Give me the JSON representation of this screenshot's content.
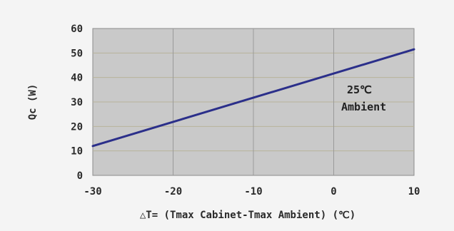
{
  "chart_data": {
    "type": "line",
    "xlabel": "△T= (Tmax Cabinet-Tmax Ambient) (℃)",
    "ylabel": "Qc (W)",
    "x_ticks": [
      "-30",
      "-20",
      "-10",
      "0",
      "10"
    ],
    "y_ticks": [
      "0",
      "10",
      "20",
      "30",
      "40",
      "50",
      "60"
    ],
    "xlim": [
      -30,
      10
    ],
    "ylim": [
      0,
      60
    ],
    "grid": true,
    "series": [
      {
        "x": [
          -30,
          10
        ],
        "y": [
          12,
          51.5
        ]
      }
    ],
    "annotation": {
      "line1": "25℃",
      "line2": "Ambient",
      "x": 2,
      "y": 30
    },
    "colors": {
      "plot_background": "#c9c9c9",
      "page_background": "#f4f4f4",
      "line": "#2b2f8a",
      "grid_horizontal": "#b7b39a",
      "grid_vertical": "#9a9a9a"
    }
  }
}
